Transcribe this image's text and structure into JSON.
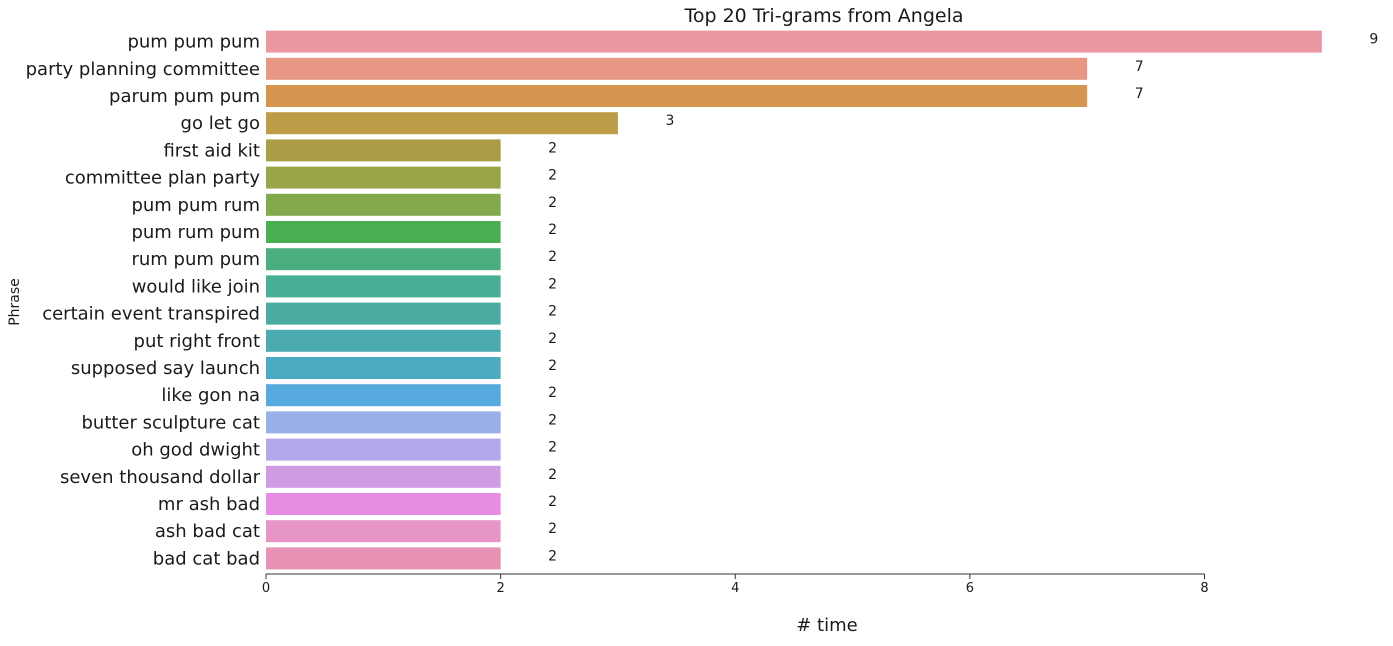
{
  "chart_data": {
    "type": "bar",
    "orientation": "horizontal",
    "title": "Top 20 Tri-grams from Angela",
    "xlabel": "# time",
    "ylabel": "Phrase",
    "xlim": [
      0,
      9.3
    ],
    "xticks": [
      0,
      2,
      4,
      6,
      8
    ],
    "grid": false,
    "categories": [
      "pum pum pum",
      "party planning committee",
      "parum pum pum",
      "go let go",
      "first aid kit",
      "committee plan party",
      "pum pum rum",
      "pum rum pum",
      "rum pum pum",
      "would like join",
      "certain event transpired",
      "put right front",
      "supposed say launch",
      "like gon na",
      "butter sculpture cat",
      "oh god dwight",
      "seven thousand dollar",
      "mr ash bad",
      "ash bad cat",
      "bad cat bad"
    ],
    "values": [
      9,
      7,
      7,
      3,
      2,
      2,
      2,
      2,
      2,
      2,
      2,
      2,
      2,
      2,
      2,
      2,
      2,
      2,
      2,
      2
    ],
    "colors": [
      "#eb97a1",
      "#e79783",
      "#d6954e",
      "#bd9c47",
      "#aa9d45",
      "#9aa448",
      "#82a94b",
      "#4aaf52",
      "#4aae7e",
      "#48ae94",
      "#4aaba3",
      "#4aaab0",
      "#4babc0",
      "#56aadd",
      "#98afe7",
      "#b4a7ea",
      "#d09de4",
      "#e68ce2",
      "#e794c6",
      "#e791b5"
    ]
  }
}
